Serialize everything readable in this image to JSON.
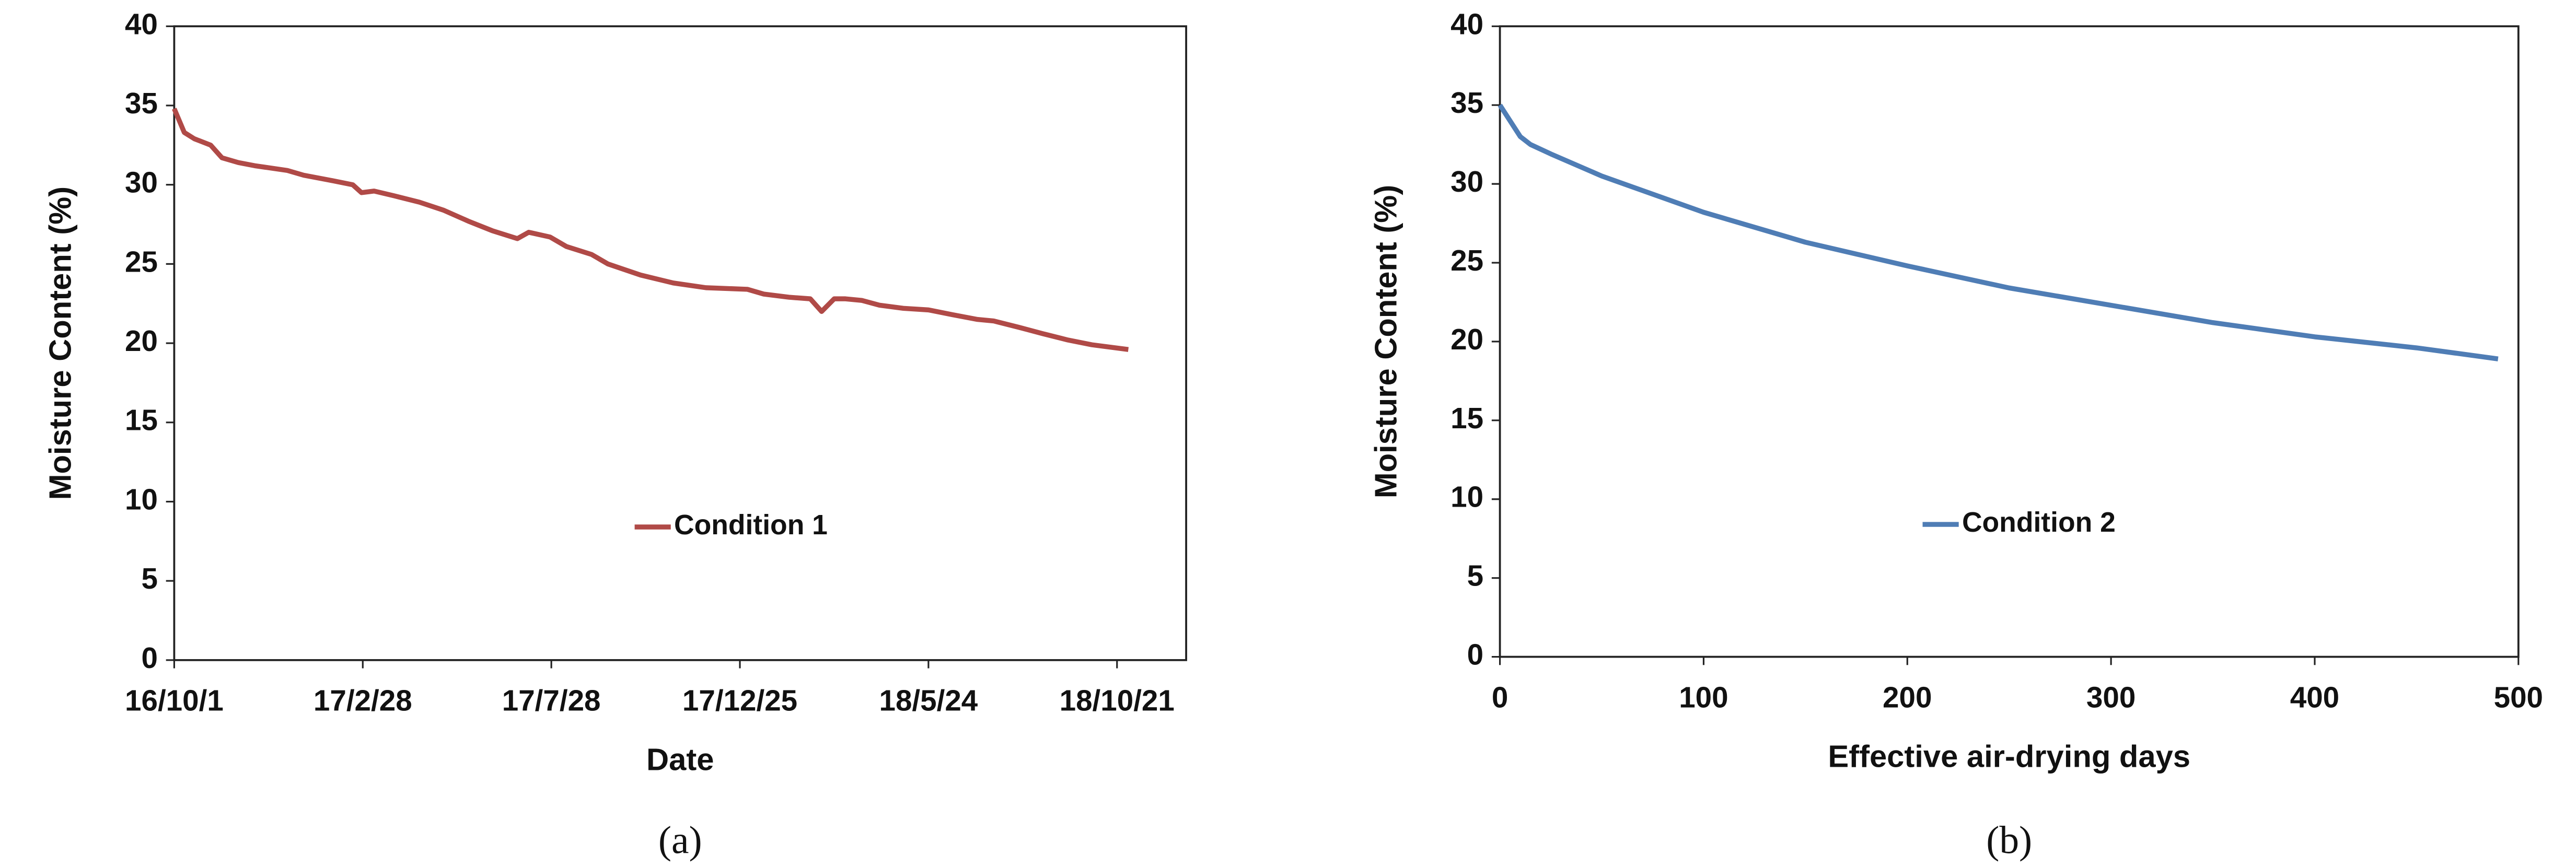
{
  "chart_data": [
    {
      "type": "line",
      "x_scale": "date",
      "caption": "(a)",
      "xlabel": "Date",
      "ylabel": "Moisture Content (%)",
      "x": [
        "2016-10-01",
        "2016-10-09",
        "2016-10-17",
        "2016-10-30",
        "2016-11-08",
        "2016-11-21",
        "2016-12-04",
        "2016-12-30",
        "2017-01-12",
        "2017-02-01",
        "2017-02-20",
        "2017-02-27",
        "2017-03-09",
        "2017-03-25",
        "2017-04-14",
        "2017-05-03",
        "2017-05-23",
        "2017-06-11",
        "2017-07-01",
        "2017-07-10",
        "2017-07-27",
        "2017-08-09",
        "2017-08-29",
        "2017-09-11",
        "2017-10-07",
        "2017-11-02",
        "2017-11-28",
        "2017-12-31",
        "2018-01-13",
        "2018-02-02",
        "2018-02-19",
        "2018-02-28",
        "2018-03-10",
        "2018-03-19",
        "2018-04-01",
        "2018-04-15",
        "2018-05-04",
        "2018-05-24",
        "2018-06-12",
        "2018-07-02",
        "2018-07-15",
        "2018-08-04",
        "2018-08-23",
        "2018-09-12",
        "2018-10-01",
        "2018-10-30"
      ],
      "series": [
        {
          "name": "Condition 1",
          "color": "#b04a47",
          "values": [
            34.8,
            33.3,
            32.9,
            32.5,
            31.7,
            31.4,
            31.2,
            30.9,
            30.6,
            30.3,
            30.0,
            29.5,
            29.6,
            29.3,
            28.9,
            28.4,
            27.7,
            27.1,
            26.6,
            27.0,
            26.7,
            26.1,
            25.6,
            25.0,
            24.3,
            23.8,
            23.5,
            23.4,
            23.1,
            22.9,
            22.8,
            22.0,
            22.8,
            22.8,
            22.7,
            22.4,
            22.2,
            22.1,
            21.8,
            21.5,
            21.4,
            21.0,
            20.6,
            20.2,
            19.9,
            19.6
          ]
        }
      ],
      "xlim": [
        "2016-10-01",
        "2018-12-15"
      ],
      "xticks": [
        {
          "value": "2016-10-01",
          "label": "16/10/1"
        },
        {
          "value": "2017-02-28",
          "label": "17/2/28"
        },
        {
          "value": "2017-07-28",
          "label": "17/7/28"
        },
        {
          "value": "2017-12-25",
          "label": "17/12/25"
        },
        {
          "value": "2018-05-24",
          "label": "18/5/24"
        },
        {
          "value": "2018-10-21",
          "label": "18/10/21"
        }
      ],
      "ylim": [
        0,
        40
      ],
      "yticks": [
        0,
        5,
        10,
        15,
        20,
        25,
        30,
        35,
        40
      ],
      "grid": false
    },
    {
      "type": "line",
      "x_scale": "linear",
      "caption": "(b)",
      "xlabel": "Effective air-drying days",
      "ylabel": "Moisture Content (%)",
      "x": [
        0,
        5,
        10,
        15,
        25,
        50,
        100,
        150,
        200,
        250,
        300,
        350,
        400,
        450,
        490
      ],
      "series": [
        {
          "name": "Condition 2",
          "color": "#4f7db5",
          "values": [
            35,
            34,
            33,
            32.5,
            31.9,
            30.5,
            28.2,
            26.3,
            24.8,
            23.4,
            22.3,
            21.2,
            20.3,
            19.6,
            18.9
          ]
        }
      ],
      "xlim": [
        0,
        500
      ],
      "xticks": [
        0,
        100,
        200,
        300,
        400,
        500
      ],
      "ylim": [
        0,
        40
      ],
      "yticks": [
        0,
        5,
        10,
        15,
        20,
        25,
        30,
        35,
        40
      ],
      "grid": false
    }
  ]
}
